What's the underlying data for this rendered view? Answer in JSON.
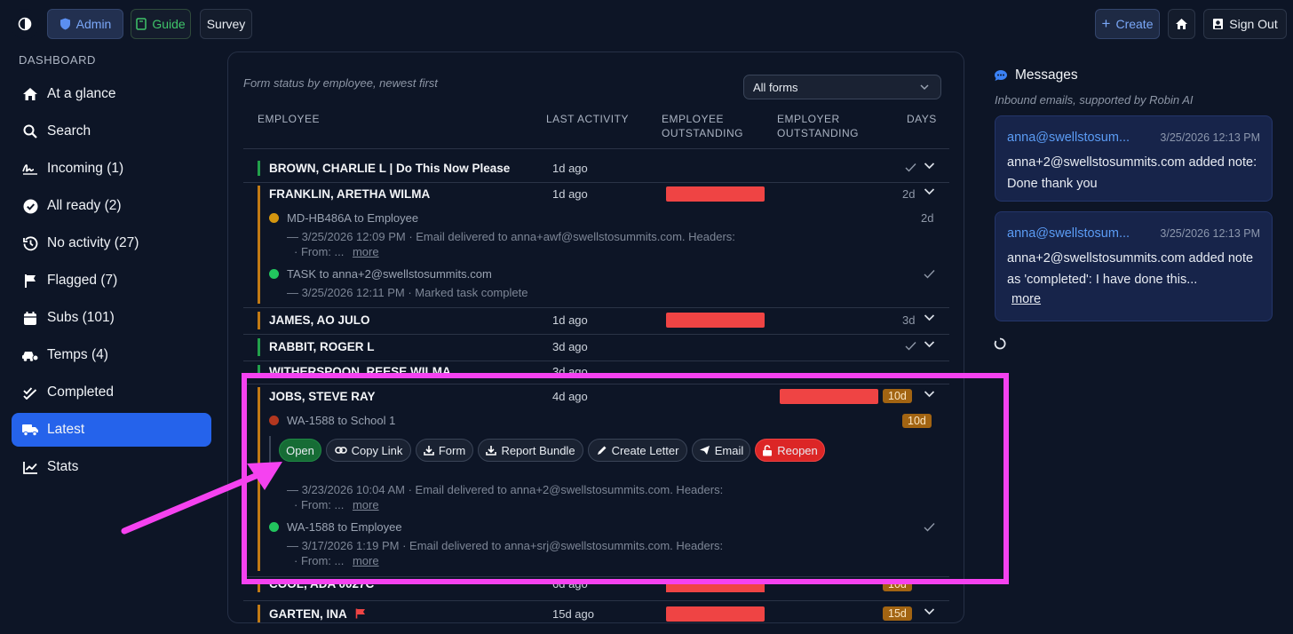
{
  "topbar": {
    "admin_label": "Admin",
    "guide_label": "Guide",
    "survey_label": "Survey",
    "create_label": "Create",
    "signout_label": "Sign Out"
  },
  "sidebar": {
    "title": "DASHBOARD",
    "items": [
      {
        "label": "At a glance",
        "icon": "home-icon"
      },
      {
        "label": "Search",
        "icon": "search-icon"
      },
      {
        "label": "Incoming (1)",
        "icon": "signature-icon"
      },
      {
        "label": "All ready (2)",
        "icon": "check-circle-icon"
      },
      {
        "label": "No activity (27)",
        "icon": "history-icon"
      },
      {
        "label": "Flagged (7)",
        "icon": "flag-icon"
      },
      {
        "label": "Subs (101)",
        "icon": "calendar-icon"
      },
      {
        "label": "Temps (4)",
        "icon": "car-icon"
      },
      {
        "label": "Completed",
        "icon": "double-check-icon"
      },
      {
        "label": "Latest",
        "icon": "truck-icon",
        "active": true
      },
      {
        "label": "Stats",
        "icon": "chart-icon"
      }
    ]
  },
  "main": {
    "subtitle": "Form status by employee, newest first",
    "filter": "All forms",
    "headers": {
      "employee": "EMPLOYEE",
      "last_activity": "LAST ACTIVITY",
      "emp_out_1": "EMPLOYEE",
      "emp_out_2": "OUTSTANDING",
      "er_out_1": "EMPLOYER",
      "er_out_2": "OUTSTANDING",
      "days": "DAYS"
    },
    "rows": {
      "brown": {
        "name": "BROWN, CHARLIE L | Do This Now Please",
        "activity": "1d ago"
      },
      "franklin": {
        "name": "FRANKLIN, ARETHA WILMA",
        "activity": "1d ago",
        "days": "2d",
        "sub1_title": "MD-HB486A to Employee",
        "sub1_days": "2d",
        "sub1_line": "— 3/25/2026 12:09 PM · Email delivered to anna+awf@swellstosummits.com. Headers:",
        "sub1_from": "· From:   ...",
        "more": "more",
        "sub2_title": "TASK to anna+2@swellstosummits.com",
        "sub2_line": "— 3/25/2026 12:11 PM · Marked task complete"
      },
      "james": {
        "name": "JAMES, AO JULO",
        "activity": "1d ago",
        "days": "3d"
      },
      "rabbit": {
        "name": "RABBIT, ROGER L",
        "activity": "3d ago"
      },
      "witherspoon": {
        "name": "WITHERSPOON, REESE WILMA",
        "activity": "3d ago"
      },
      "jobs": {
        "name": "JOBS, STEVE RAY",
        "activity": "4d ago",
        "days": "10d",
        "sub1_title": "WA-1588 to School 1",
        "sub1_days": "10d",
        "actions": {
          "open": "Open",
          "copy": "Copy Link",
          "form": "Form",
          "report": "Report Bundle",
          "letter": "Create Letter",
          "email": "Email",
          "reopen": "Reopen"
        },
        "sub1_line": "— 3/23/2026 10:04 AM · Email delivered to anna+2@swellstosummits.com. Headers:",
        "sub1_from": "· From:   ...",
        "more": "more",
        "sub2_title": "WA-1588 to Employee",
        "sub2_line": "— 3/17/2026 1:19 PM · Email delivered to anna+srj@swellstosummits.com. Headers:",
        "sub2_from": "· From:   ..."
      },
      "cool": {
        "name": "COOL, ADA 0027C",
        "activity": "6d ago",
        "days": "10d"
      },
      "garten": {
        "name": "GARTEN, INA",
        "activity": "15d ago",
        "days": "15d"
      }
    }
  },
  "messages": {
    "title": "Messages",
    "subtitle": "Inbound emails, supported by Robin AI",
    "items": [
      {
        "from": "anna@swellstosum...",
        "time": "3/25/2026 12:13 PM",
        "body": "anna+2@swellstosummits.com added note: Done thank you"
      },
      {
        "from": "anna@swellstosum...",
        "time": "3/25/2026 12:13 PM",
        "body": "anna+2@swellstosummits.com added note as 'completed': I have done this...",
        "more": "more"
      }
    ]
  },
  "colors": {
    "accent": "#2563eb",
    "highlight": "#f542f0",
    "red": "#ef4444",
    "orange_tag": "#a26412"
  }
}
